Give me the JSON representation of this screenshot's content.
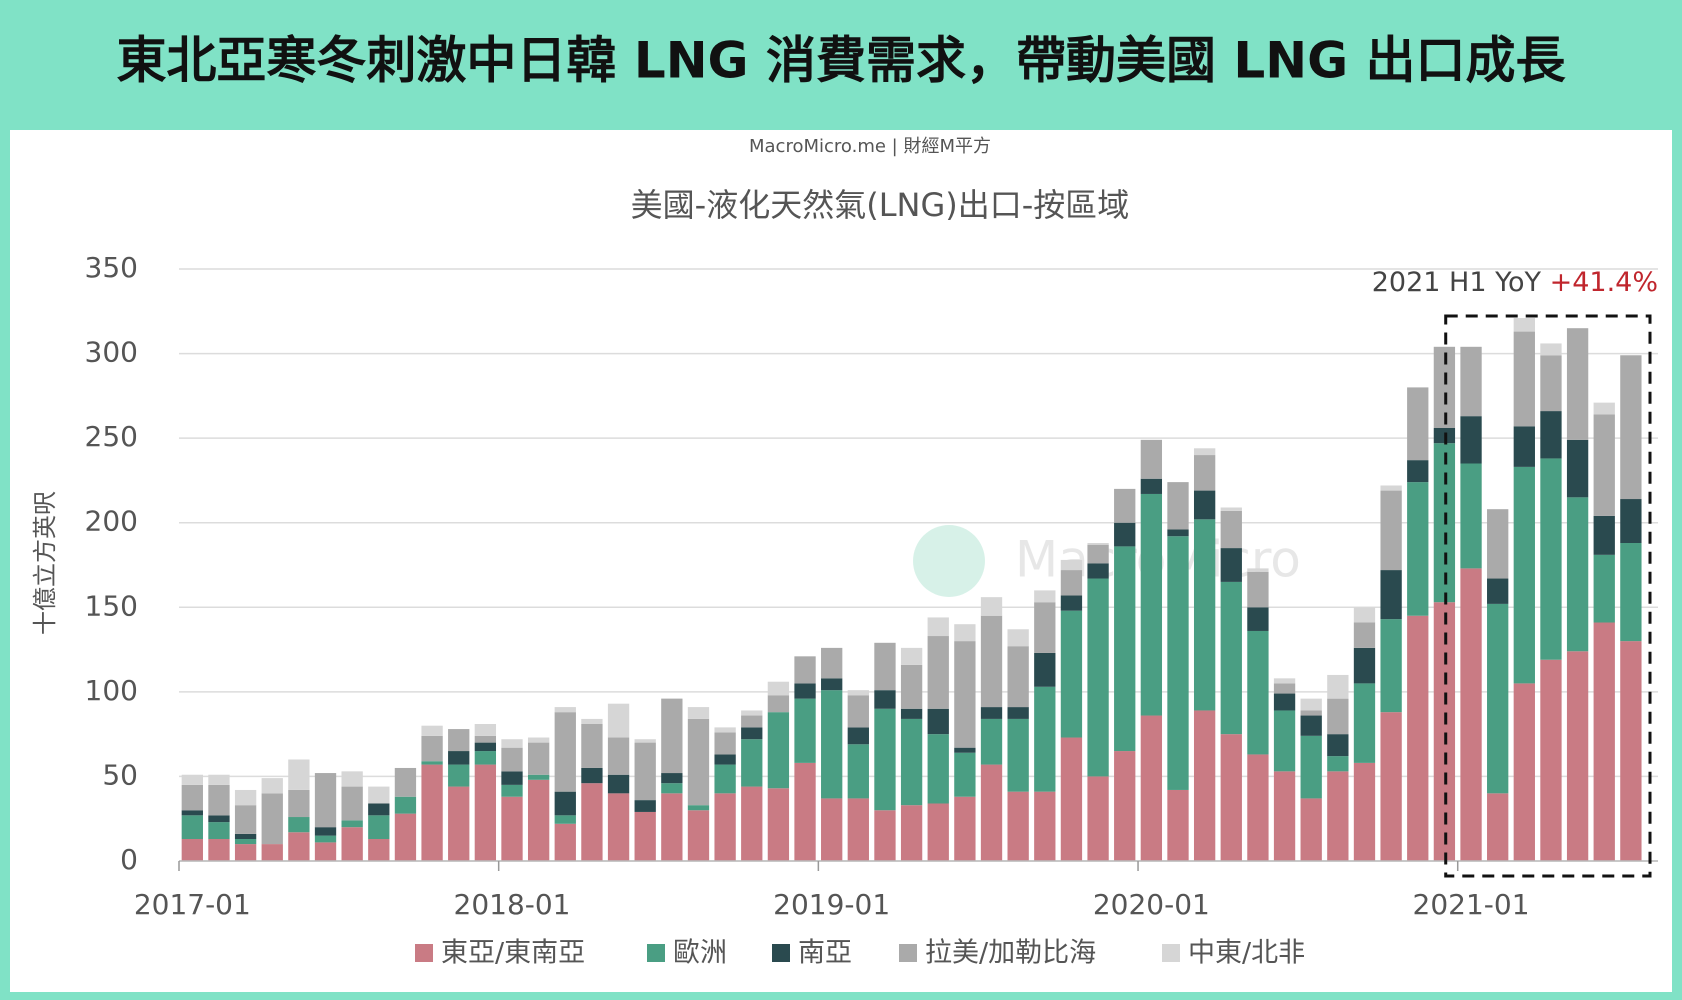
{
  "chart_data": {
    "type": "bar",
    "stacked": true,
    "title": "東北亞寒冬刺激中日韓 LNG 消費需求，帶動美國 LNG 出口成長",
    "source": "MacroMicro.me | 財經M平方",
    "subtitle": "美國-液化天然氣(LNG)出口-按區域",
    "ylabel": "十億立方英呎",
    "watermark": "MacroMicro",
    "annotation": "2021 H1 YoY",
    "annotation_highlight": "+41.4%",
    "categories": [
      "2017-01",
      "2017-02",
      "2017-03",
      "2017-04",
      "2017-05",
      "2017-06",
      "2017-07",
      "2017-08",
      "2017-09",
      "2017-10",
      "2017-11",
      "2017-12",
      "2018-01",
      "2018-02",
      "2018-03",
      "2018-04",
      "2018-05",
      "2018-06",
      "2018-07",
      "2018-08",
      "2018-09",
      "2018-10",
      "2018-11",
      "2018-12",
      "2019-01",
      "2019-02",
      "2019-03",
      "2019-04",
      "2019-05",
      "2019-06",
      "2019-07",
      "2019-08",
      "2019-09",
      "2019-10",
      "2019-11",
      "2019-12",
      "2020-01",
      "2020-02",
      "2020-03",
      "2020-04",
      "2020-05",
      "2020-06",
      "2020-07",
      "2020-08",
      "2020-09",
      "2020-10",
      "2020-11",
      "2020-12",
      "2021-01",
      "2021-02",
      "2021-03",
      "2021-04",
      "2021-05",
      "2021-06",
      "2021-07"
    ],
    "xticks": [
      "2017-01",
      "2018-01",
      "2019-01",
      "2020-01",
      "2021-01"
    ],
    "series": [
      {
        "name": "東亞/東南亞",
        "color": "#c97b84",
        "values": [
          13,
          13,
          10,
          10,
          17,
          11,
          20,
          13,
          28,
          57,
          44,
          57,
          38,
          48,
          22,
          46,
          40,
          29,
          40,
          30,
          40,
          44,
          43,
          58,
          37,
          37,
          30,
          33,
          34,
          38,
          57,
          41,
          41,
          73,
          50,
          65,
          86,
          42,
          89,
          75,
          63,
          53,
          37,
          53,
          58,
          88,
          145,
          153,
          173,
          40,
          105,
          119,
          124,
          141,
          130
        ]
      },
      {
        "name": "歐洲",
        "color": "#4a9e83",
        "values": [
          14,
          10,
          3,
          0,
          9,
          4,
          4,
          14,
          10,
          2,
          13,
          8,
          7,
          3,
          5,
          0,
          0,
          0,
          6,
          3,
          17,
          28,
          45,
          38,
          64,
          32,
          60,
          51,
          41,
          26,
          27,
          43,
          62,
          75,
          117,
          121,
          131,
          150,
          113,
          90,
          73,
          36,
          37,
          9,
          47,
          55,
          79,
          94,
          62,
          112,
          128,
          119,
          91,
          40,
          58
        ]
      },
      {
        "name": "南亞",
        "color": "#2a4a4f",
        "values": [
          3,
          4,
          3,
          0,
          0,
          5,
          0,
          7,
          0,
          0,
          8,
          5,
          8,
          0,
          14,
          9,
          11,
          7,
          6,
          0,
          6,
          7,
          0,
          9,
          7,
          10,
          11,
          6,
          15,
          3,
          7,
          7,
          20,
          9,
          9,
          14,
          9,
          4,
          17,
          20,
          14,
          10,
          12,
          13,
          21,
          29,
          13,
          9,
          28,
          15,
          24,
          28,
          34,
          23,
          26
        ]
      },
      {
        "name": "拉美/加勒比海",
        "color": "#aaaaaa",
        "values": [
          15,
          18,
          17,
          30,
          16,
          32,
          20,
          0,
          17,
          15,
          13,
          4,
          14,
          19,
          47,
          26,
          22,
          34,
          44,
          51,
          13,
          7,
          10,
          16,
          18,
          19,
          28,
          26,
          43,
          63,
          54,
          36,
          30,
          15,
          11,
          20,
          23,
          28,
          21,
          22,
          21,
          6,
          3,
          21,
          15,
          47,
          43,
          48,
          41,
          41,
          56,
          33,
          66,
          60,
          85
        ]
      },
      {
        "name": "中東/北非",
        "color": "#d6d6d6",
        "values": [
          6,
          6,
          9,
          9,
          18,
          0,
          9,
          10,
          0,
          6,
          0,
          7,
          5,
          3,
          3,
          3,
          20,
          2,
          0,
          7,
          3,
          3,
          8,
          0,
          0,
          3,
          0,
          10,
          11,
          10,
          11,
          10,
          7,
          6,
          1,
          0,
          0,
          0,
          4,
          2,
          2,
          3,
          7,
          14,
          9,
          3,
          0,
          0,
          0,
          0,
          8,
          7,
          0,
          7,
          0
        ]
      }
    ],
    "ylim": [
      0,
      350
    ],
    "yticks": [
      0,
      50,
      100,
      150,
      200,
      250,
      300,
      350
    ],
    "grid": true
  }
}
